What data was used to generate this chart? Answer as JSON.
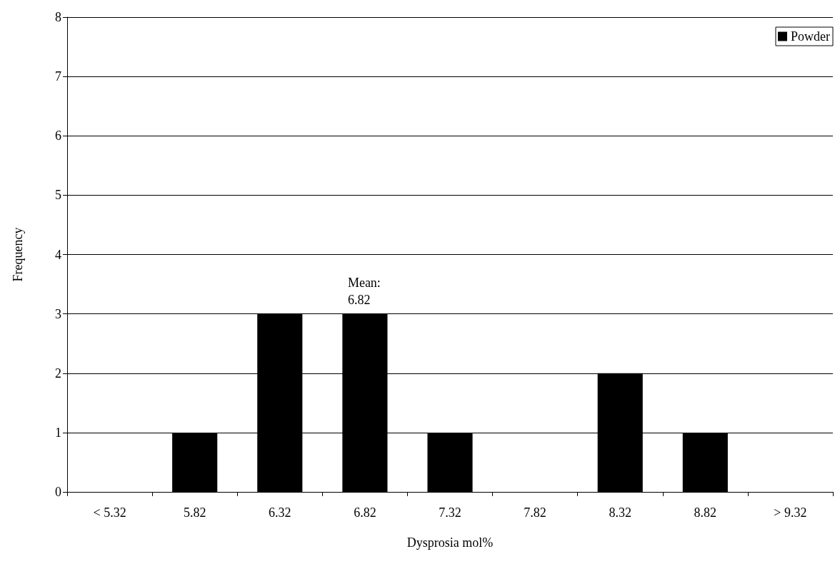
{
  "chart_data": {
    "type": "bar",
    "xlabel": "Dysprosia mol%",
    "ylabel": "Frequency",
    "categories": [
      "< 5.32",
      "5.82",
      "6.32",
      "6.82",
      "7.32",
      "7.82",
      "8.32",
      "8.82",
      "> 9.32"
    ],
    "series": [
      {
        "name": "Powder",
        "color": "#000000",
        "values": [
          0,
          1,
          3,
          3,
          1,
          0,
          2,
          1,
          0
        ]
      }
    ],
    "ylim": [
      0,
      8
    ],
    "yticks": [
      0,
      1,
      2,
      3,
      4,
      5,
      6,
      7,
      8
    ],
    "grid": "y",
    "legend": "top right",
    "annotations": [
      {
        "text": "Mean:\n6.82",
        "x": "6.82",
        "y": 3
      }
    ]
  }
}
